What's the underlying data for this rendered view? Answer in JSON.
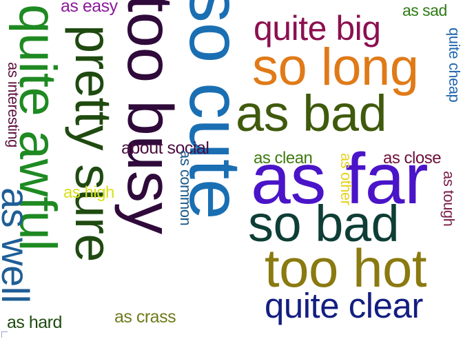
{
  "words": {
    "w00": {
      "text": "so cute",
      "color": "#1a6fb3"
    },
    "w01": {
      "text": "too busy",
      "color": "#2f0a3a"
    },
    "w02": {
      "text": "pretty sure",
      "color": "#1f4a10"
    },
    "w03": {
      "text": "quite awful",
      "color": "#1e8a22"
    },
    "w04": {
      "text": "as well",
      "color": "#1f5e96"
    },
    "w05": {
      "text": "as interesting",
      "color": "#5b1240"
    },
    "w06": {
      "text": "as easy",
      "color": "#8a1a9a"
    },
    "w07": {
      "text": "as sad",
      "color": "#2e7a14"
    },
    "w08": {
      "text": "quite big",
      "color": "#8b1050"
    },
    "w09": {
      "text": "so long",
      "color": "#e07a18"
    },
    "w10": {
      "text": "quite cheap",
      "color": "#2066b0"
    },
    "w11": {
      "text": "as bad",
      "color": "#3f5a0c"
    },
    "w12": {
      "text": "about social",
      "color": "#4a0e40"
    },
    "w13": {
      "text": "as clean",
      "color": "#3f7a10"
    },
    "w14": {
      "text": "as close",
      "color": "#6e0e3a"
    },
    "w15": {
      "text": "as far",
      "color": "#4a14c8"
    },
    "w16": {
      "text": "as other",
      "color": "#e6d21e"
    },
    "w17": {
      "text": "as common",
      "color": "#1a5888"
    },
    "w18": {
      "text": "as high",
      "color": "#d8e01a"
    },
    "w19": {
      "text": "as tough",
      "color": "#7a1e4a"
    },
    "w20": {
      "text": "so bad",
      "color": "#0e3e36"
    },
    "w21": {
      "text": "too hot",
      "color": "#8a7a10"
    },
    "w22": {
      "text": "quite clear",
      "color": "#141e80"
    },
    "w23": {
      "text": "as hard",
      "color": "#1f4a10"
    },
    "w24": {
      "text": "as crass",
      "color": "#6e7a1a"
    }
  }
}
